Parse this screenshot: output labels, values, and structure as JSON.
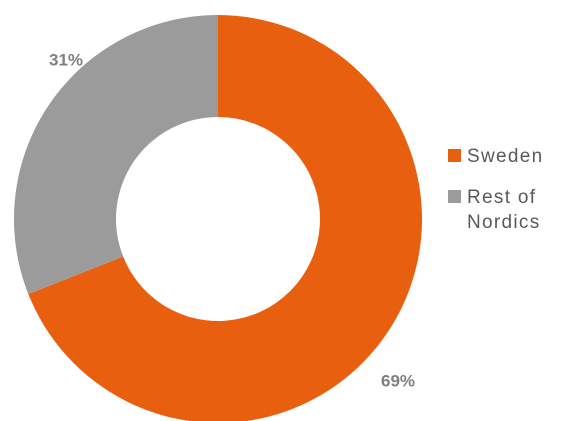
{
  "chart_data": {
    "type": "pie",
    "variant": "donut",
    "title": "",
    "categories": [
      "Sweden",
      "Rest of Nordics"
    ],
    "values": [
      69,
      31
    ],
    "data_labels": [
      "69%",
      "31%"
    ],
    "colors": [
      "#e8600f",
      "#9b9b9b"
    ],
    "legend_position": "right",
    "legend": [
      {
        "label": "Sweden",
        "color": "#e8600f"
      },
      {
        "label": "Rest of Nordics",
        "color": "#9b9b9b"
      }
    ]
  }
}
